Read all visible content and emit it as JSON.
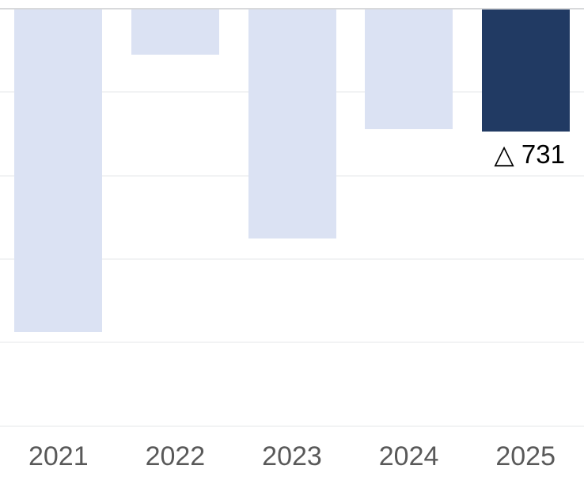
{
  "chart_data": {
    "type": "bar",
    "title": "",
    "xlabel": "",
    "ylabel": "",
    "legend": "none",
    "orientation": "columns-hanging-downward-from-zero-line-at-top",
    "categories": [
      "2021",
      "2022",
      "2023",
      "2024",
      "2025"
    ],
    "values": [
      1930,
      270,
      1370,
      715,
      731
    ],
    "value_labels": [
      "",
      "",
      "",
      "",
      "△ 731"
    ],
    "highlight_index": 4,
    "ylim": [
      0,
      2590
    ],
    "gridline_values": [
      500,
      1000,
      1500,
      2000,
      2500
    ],
    "grid": "on",
    "colors": {
      "bar_default": "#dbe2f3",
      "bar_highlight": "#213a63",
      "zero_axis_line": "#d8d9db",
      "gridline": "#f2f3f4",
      "tick_label": "#595959",
      "data_label": "#000000",
      "background": "#ffffff"
    }
  }
}
